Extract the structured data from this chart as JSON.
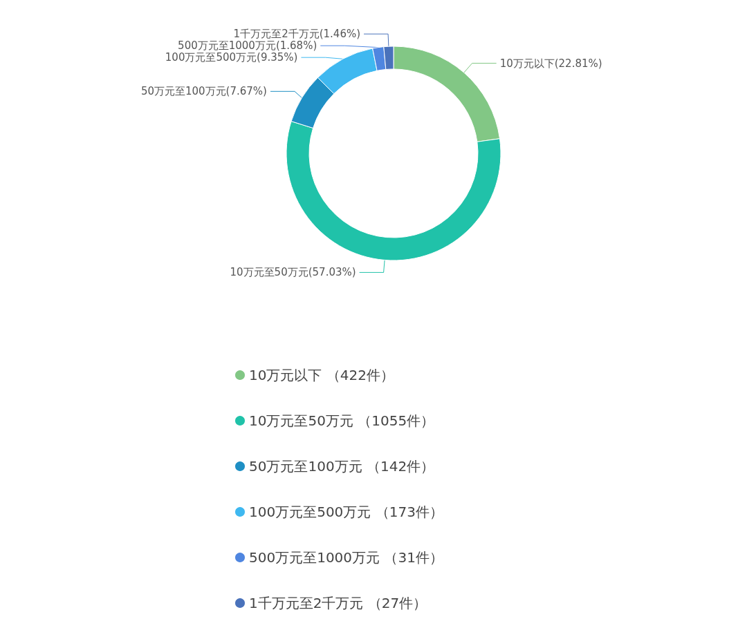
{
  "chart_data": {
    "type": "donut",
    "categories": [
      "10万元以下 （422件）",
      "10万元至50万元 （1055件）",
      "50万元至100万元 （142件）",
      "100万元至500万元 （173件）",
      "500万元至1000万元 （31件）",
      "1千万元至2千万元 （27件）"
    ],
    "values": [
      22.81,
      57.03,
      7.67,
      9.35,
      1.68,
      1.46
    ],
    "value_labels": [
      "10万元以下(22.81%)",
      "10万元至50万元(57.03%)",
      "50万元至100万元(7.67%)",
      "100万元至500万元(9.35%)",
      "500万元至1000万元(1.68%)",
      "1千万元至2千万元(1.46%)"
    ],
    "colors": [
      "#82c785",
      "#20c2a9",
      "#1f8fc4",
      "#3fb8f0",
      "#4f86e0",
      "#4a72bb"
    ],
    "legend": "bottom"
  }
}
